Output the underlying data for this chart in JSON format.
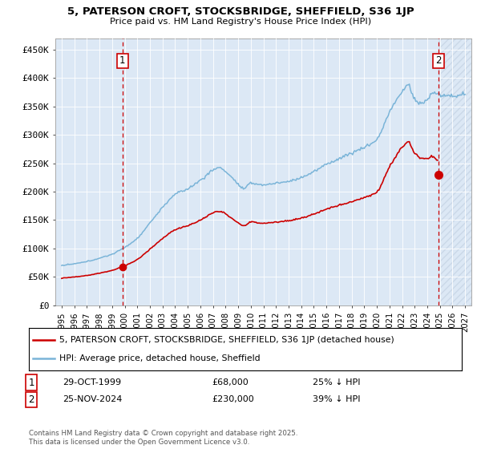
{
  "title": "5, PATERSON CROFT, STOCKSBRIDGE, SHEFFIELD, S36 1JP",
  "subtitle": "Price paid vs. HM Land Registry's House Price Index (HPI)",
  "ylabel_ticks": [
    "£0",
    "£50K",
    "£100K",
    "£150K",
    "£200K",
    "£250K",
    "£300K",
    "£350K",
    "£400K",
    "£450K"
  ],
  "ylim": [
    0,
    470000
  ],
  "yticks": [
    0,
    50000,
    100000,
    150000,
    200000,
    250000,
    300000,
    350000,
    400000,
    450000
  ],
  "xlim_start": 1994.5,
  "xlim_end": 2027.5,
  "sale1_date": 1999.83,
  "sale1_price": 68000,
  "sale2_date": 2024.9,
  "sale2_price": 230000,
  "hpi_color": "#7ab4d8",
  "price_color": "#cc0000",
  "vline_color": "#cc0000",
  "bg_color": "#dce8f5",
  "hatch_color": "#c8d8e8",
  "legend1": "5, PATERSON CROFT, STOCKSBRIDGE, SHEFFIELD, S36 1JP (detached house)",
  "legend2": "HPI: Average price, detached house, Sheffield",
  "ann1_date": "29-OCT-1999",
  "ann1_price": "£68,000",
  "ann1_hpi": "25% ↓ HPI",
  "ann2_date": "25-NOV-2024",
  "ann2_price": "£230,000",
  "ann2_hpi": "39% ↓ HPI",
  "footer": "Contains HM Land Registry data © Crown copyright and database right 2025.\nThis data is licensed under the Open Government Licence v3.0."
}
